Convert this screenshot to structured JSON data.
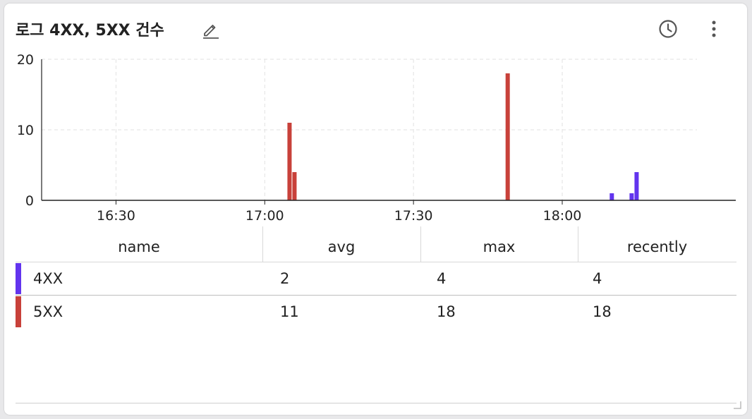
{
  "widget": {
    "title": "로그 4XX, 5XX 건수",
    "icons": {
      "edit": "pencil-edit-icon",
      "history": "clock-icon",
      "more": "more-vertical-icon",
      "resize": "resize-handle-icon"
    }
  },
  "chart_data": {
    "type": "bar",
    "x_axis": {
      "type": "time",
      "range": [
        "16:15",
        "18:35"
      ],
      "ticks": [
        "16:30",
        "17:00",
        "17:30",
        "18:00"
      ]
    },
    "y_axis": {
      "range": [
        0,
        20
      ],
      "ticks": [
        0,
        10,
        20
      ]
    },
    "grid": true,
    "legend": "table-below",
    "series": [
      {
        "name": "4XX",
        "color": "#6234ee",
        "points": [
          {
            "x": "18:10",
            "y": 1
          },
          {
            "x": "18:14",
            "y": 1
          },
          {
            "x": "18:15",
            "y": 4
          }
        ]
      },
      {
        "name": "5XX",
        "color": "#c8413a",
        "points": [
          {
            "x": "17:05",
            "y": 11
          },
          {
            "x": "17:06",
            "y": 4
          },
          {
            "x": "17:49",
            "y": 18
          }
        ]
      }
    ]
  },
  "table": {
    "columns": [
      "name",
      "avg",
      "max",
      "recently"
    ],
    "rows": [
      {
        "name": "4XX",
        "avg": "2",
        "max": "4",
        "recently": "4",
        "color": "#6234ee"
      },
      {
        "name": "5XX",
        "avg": "11",
        "max": "18",
        "recently": "18",
        "color": "#c8413a"
      }
    ]
  }
}
